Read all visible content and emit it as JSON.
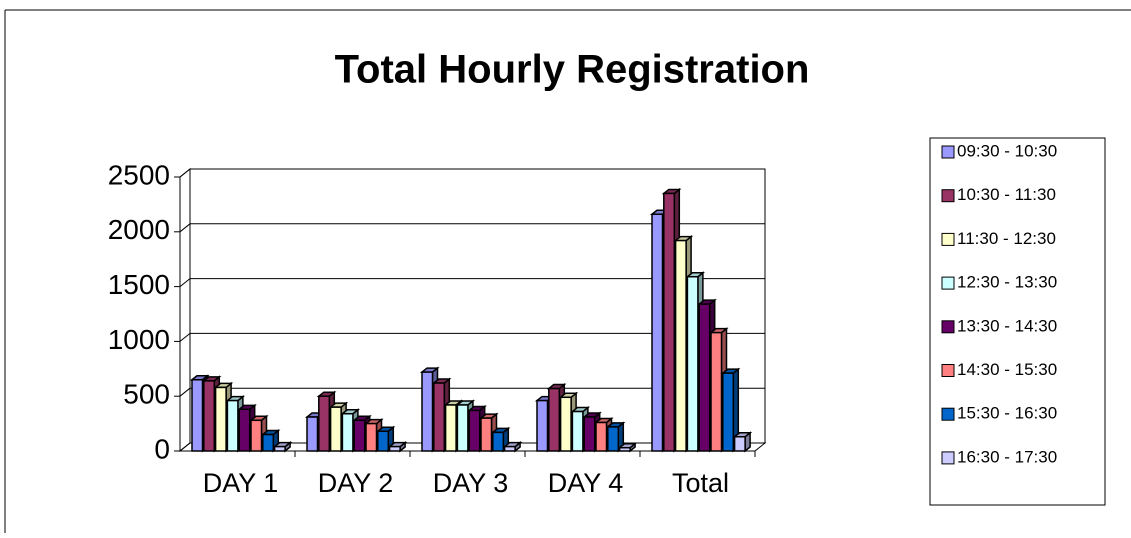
{
  "chart_data": {
    "type": "bar",
    "title": "Total Hourly Registration",
    "categories": [
      "DAY 1",
      "DAY 2",
      "DAY 3",
      "DAY 4",
      "Total"
    ],
    "series": [
      {
        "name": "09:30 - 10:30",
        "color": "#9999ff",
        "values": [
          650,
          310,
          720,
          460,
          2160
        ]
      },
      {
        "name": "10:30 - 11:30",
        "color": "#993366",
        "values": [
          640,
          500,
          620,
          570,
          2350
        ]
      },
      {
        "name": "11:30 - 12:30",
        "color": "#ffffcc",
        "values": [
          580,
          400,
          420,
          490,
          1920
        ]
      },
      {
        "name": "12:30 - 13:30",
        "color": "#ccffff",
        "values": [
          460,
          340,
          420,
          360,
          1590
        ]
      },
      {
        "name": "13:30 - 14:30",
        "color": "#660066",
        "values": [
          380,
          280,
          370,
          310,
          1340
        ]
      },
      {
        "name": "14:30 - 15:30",
        "color": "#ff8080",
        "values": [
          280,
          250,
          300,
          260,
          1080
        ]
      },
      {
        "name": "15:30 - 16:30",
        "color": "#0066cc",
        "values": [
          150,
          180,
          170,
          220,
          710
        ]
      },
      {
        "name": "16:30 - 17:30",
        "color": "#ccccff",
        "values": [
          40,
          40,
          40,
          30,
          130
        ]
      }
    ],
    "ylim": [
      0,
      2500
    ],
    "yticks": [
      0,
      500,
      1000,
      1500,
      2000,
      2500
    ],
    "grid": true,
    "legend": "right"
  }
}
